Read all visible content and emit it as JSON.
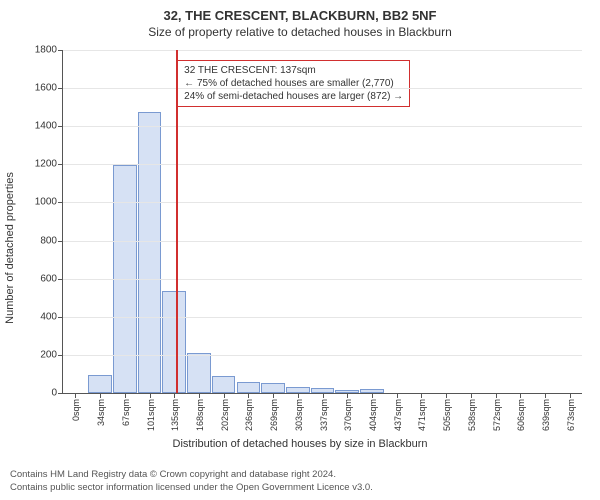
{
  "title": "32, THE CRESCENT, BLACKBURN, BB2 5NF",
  "subtitle": "Size of property relative to detached houses in Blackburn",
  "y_axis": {
    "label": "Number of detached properties",
    "min": 0,
    "max": 1800,
    "step": 200,
    "tick_fontsize": 10,
    "label_fontsize": 11
  },
  "x_axis": {
    "label": "Distribution of detached houses by size in Blackburn",
    "categories": [
      "0sqm",
      "34sqm",
      "67sqm",
      "101sqm",
      "135sqm",
      "168sqm",
      "202sqm",
      "236sqm",
      "269sqm",
      "303sqm",
      "337sqm",
      "370sqm",
      "404sqm",
      "437sqm",
      "471sqm",
      "505sqm",
      "538sqm",
      "572sqm",
      "606sqm",
      "639sqm",
      "673sqm"
    ],
    "tick_fontsize": 9,
    "label_fontsize": 11
  },
  "bars": {
    "values": [
      0,
      95,
      1195,
      1475,
      535,
      210,
      90,
      60,
      55,
      30,
      25,
      18,
      20,
      0,
      0,
      0,
      0,
      0,
      0,
      0,
      0
    ],
    "fill_color": "#d6e1f4",
    "border_color": "#7a9ad1",
    "width_ratio": 0.95
  },
  "marker": {
    "x_value_sqm": 137,
    "line_color": "#d12f2f"
  },
  "annotation": {
    "lines": [
      "32 THE CRESCENT: 137sqm",
      "← 75% of detached houses are smaller (2,770)",
      "24% of semi-detached houses are larger (872) →"
    ],
    "border_color": "#d12f2f",
    "fontsize": 10
  },
  "footer": {
    "line1": "Contains HM Land Registry data © Crown copyright and database right 2024.",
    "line2": "Contains public sector information licensed under the Open Government Licence v3.0."
  },
  "colors": {
    "background": "#ffffff",
    "grid": "#e6e6e6",
    "axis": "#555555",
    "text": "#333333"
  }
}
